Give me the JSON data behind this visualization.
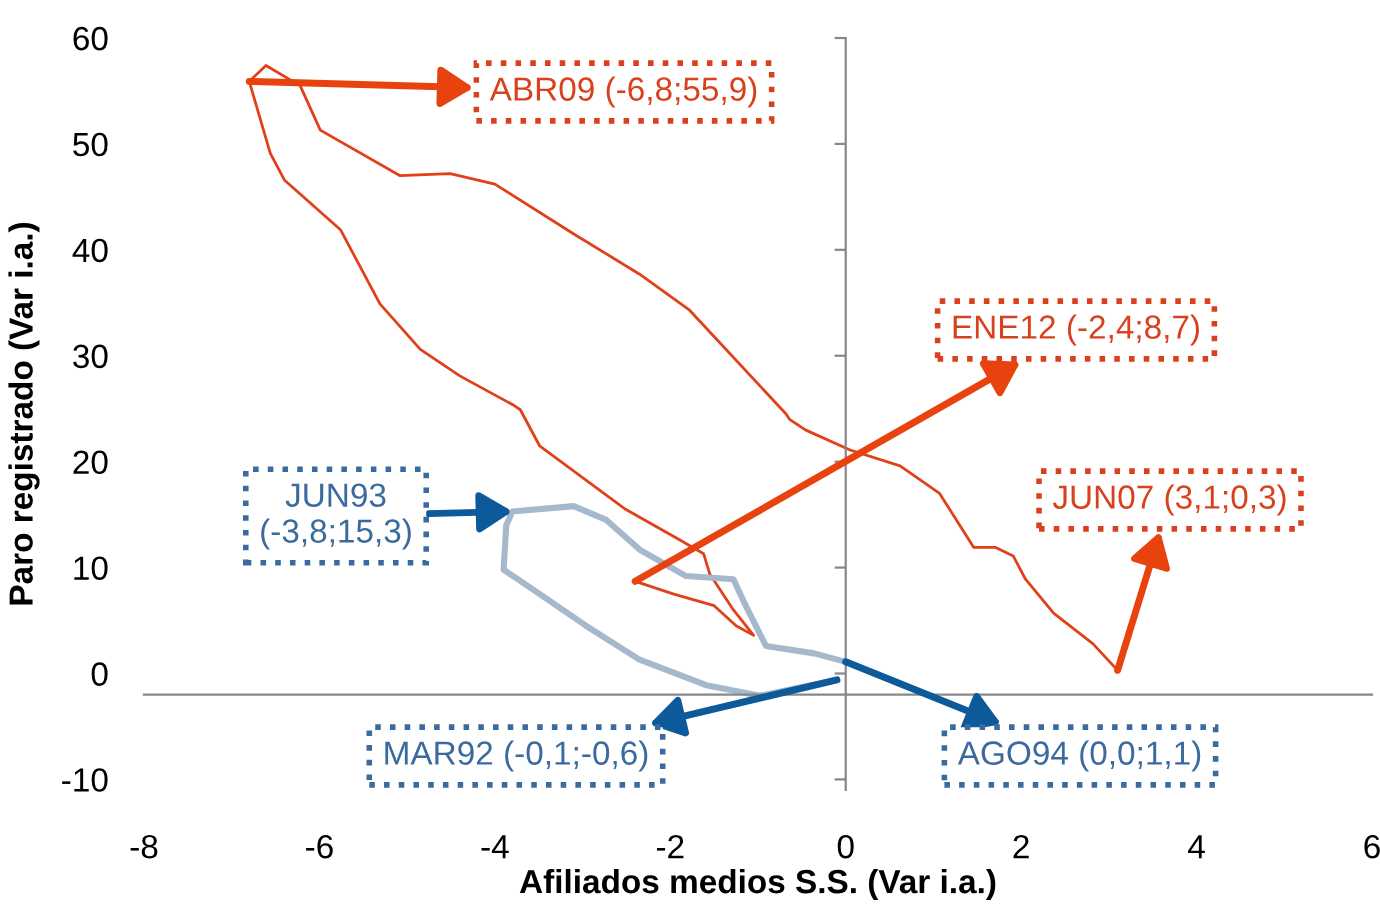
{
  "chart_data": {
    "type": "line",
    "xlabel": "Afiliados medios S.S. (Var i.a.)",
    "ylabel": "Paro registrado (Var i.a.)",
    "xlim": [
      -8,
      6
    ],
    "ylim": [
      -11,
      60
    ],
    "xticks": [
      -8,
      -6,
      -4,
      -2,
      0,
      2,
      4,
      6
    ],
    "yticks": [
      -10,
      0,
      10,
      20,
      30,
      40,
      50,
      60
    ],
    "grid": false,
    "legend": false,
    "marker": "none",
    "line_style": "solid",
    "ref_lines": [
      {
        "axis": "x",
        "value": 0,
        "color": "#888888"
      },
      {
        "axis": "y",
        "value": -2,
        "color": "#888888"
      }
    ],
    "series": [
      {
        "color": "#e0401a",
        "x": [
          3.1,
          2.82,
          2.37,
          2.05,
          1.91,
          1.71,
          1.46,
          1.3,
          1.07,
          0.62,
          0.05,
          -0.46,
          -0.64,
          -0.68,
          -1.78,
          -2.35,
          -3.1,
          -4.0,
          -4.51,
          -5.08,
          -5.99,
          -6.22,
          -6.61,
          -6.8,
          -6.56,
          -6.4,
          -5.76,
          -5.31,
          -4.85,
          -4.4,
          -3.78,
          -3.71,
          -3.49,
          -2.51,
          -1.89,
          -1.62,
          -1.55,
          -1.28,
          -1.05,
          -1.25,
          -1.5,
          -1.96,
          -2.4
        ],
        "values": [
          0.3,
          2.8,
          5.7,
          8.9,
          11.1,
          11.9,
          11.9,
          14.0,
          17.0,
          19.6,
          21.1,
          23.0,
          24.0,
          24.5,
          34.3,
          37.7,
          41.5,
          46.2,
          47.2,
          47.0,
          51.3,
          55.5,
          57.4,
          55.9,
          49.1,
          46.6,
          41.9,
          34.9,
          30.6,
          28.1,
          25.3,
          24.9,
          21.5,
          15.5,
          12.6,
          11.3,
          9.4,
          6.0,
          3.6,
          4.5,
          6.4,
          7.5,
          8.7
        ]
      },
      {
        "color": "#a5b8cc",
        "x": [
          -0.1,
          -0.98,
          -1.59,
          -2.35,
          -2.96,
          -3.49,
          -3.9,
          -3.87,
          -3.8,
          -3.1,
          -2.73,
          -2.35,
          -1.82,
          -1.28,
          -1.14,
          -0.91,
          -0.36,
          0.0
        ],
        "values": [
          -0.6,
          -2.1,
          -1.1,
          1.3,
          4.5,
          7.5,
          9.8,
          14.0,
          15.3,
          15.8,
          14.5,
          11.7,
          9.2,
          8.9,
          6.4,
          2.6,
          1.9,
          1.1
        ]
      }
    ],
    "annotations": [
      {
        "text": "ABR09 (-6,8;55,9)",
        "x": -6.8,
        "y": 55.9
      },
      {
        "text": "ENE12 (-2,4;8,7)",
        "x": -2.4,
        "y": 8.7
      },
      {
        "text": "JUN07 (3,1;0,3)",
        "x": 3.1,
        "y": 0.3
      },
      {
        "text": "JUN93\n(-3,8;15,3)",
        "x": -3.8,
        "y": 15.3
      },
      {
        "text": "MAR92 (-0,1;-0,6)",
        "x": -0.1,
        "y": -0.6
      },
      {
        "text": "AGO94 (0,0;1,1)",
        "x": 0.0,
        "y": 1.1
      }
    ]
  }
}
